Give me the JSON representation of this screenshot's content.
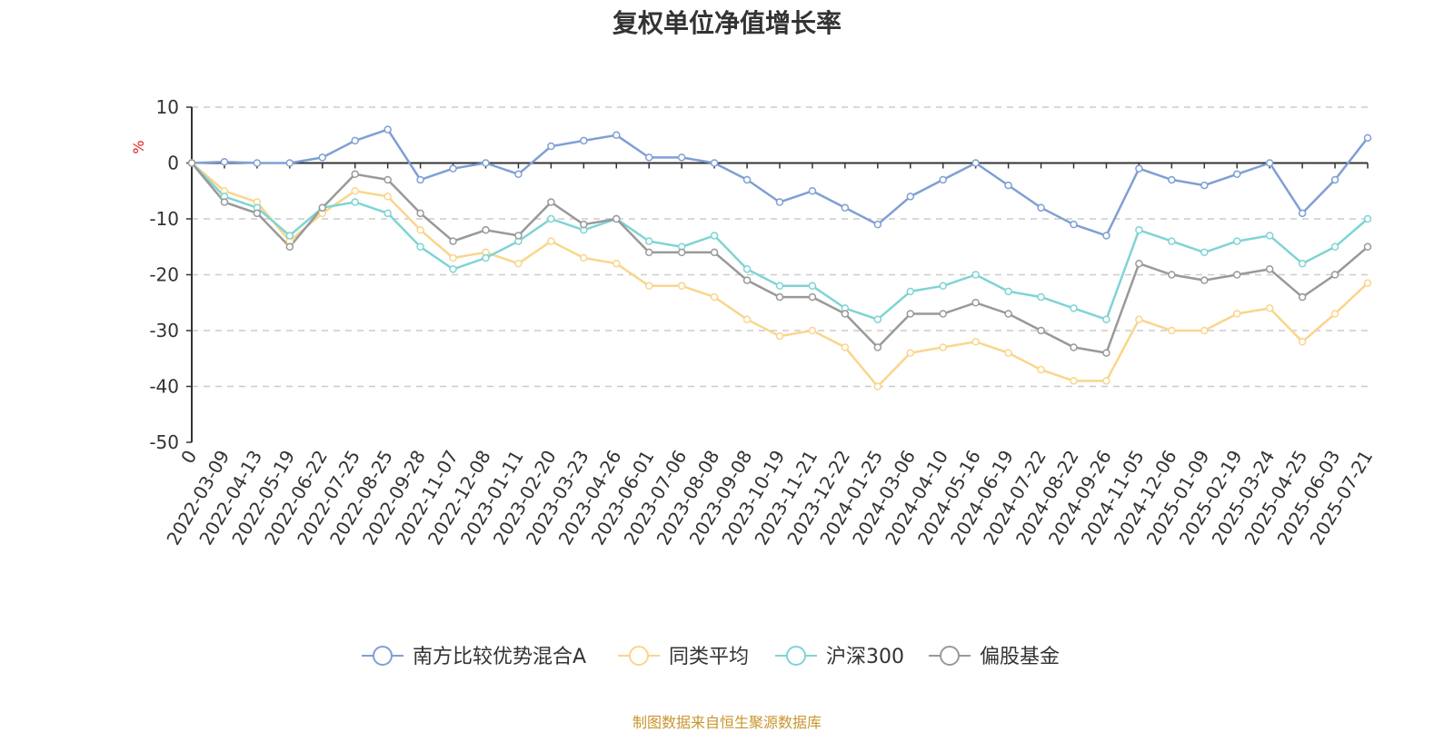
{
  "chart_data": {
    "type": "line",
    "title": "复权单位净值增长率",
    "ylabel": "%",
    "source": "制图数据来自恒生聚源数据库",
    "ylim": [
      -50,
      10
    ],
    "yticks": [
      10,
      0,
      -10,
      -20,
      -30,
      -40,
      -50
    ],
    "categories": [
      "0",
      "2022-03-09",
      "2022-04-13",
      "2022-05-19",
      "2022-06-22",
      "2022-07-25",
      "2022-08-25",
      "2022-09-28",
      "2022-11-07",
      "2022-12-08",
      "2023-01-11",
      "2023-02-20",
      "2023-03-23",
      "2023-04-26",
      "2023-06-01",
      "2023-07-06",
      "2023-08-08",
      "2023-09-08",
      "2023-10-19",
      "2023-11-21",
      "2023-12-22",
      "2024-01-25",
      "2024-03-06",
      "2024-04-10",
      "2024-05-16",
      "2024-06-19",
      "2024-07-22",
      "2024-08-22",
      "2024-09-26",
      "2024-11-05",
      "2024-12-06",
      "2025-01-09",
      "2025-02-19",
      "2025-03-24",
      "2025-04-25",
      "2025-06-03",
      "2025-07-21"
    ],
    "grid": true,
    "legend_position": "bottom",
    "series": [
      {
        "name": "南方比较优势混合A",
        "color": "#7f9fd4",
        "values": [
          0,
          0.2,
          0,
          0,
          1,
          4,
          6,
          -3,
          -1,
          0,
          -2,
          3,
          4,
          5,
          1,
          1,
          0,
          -3,
          -7,
          -5,
          -8,
          -11,
          -6,
          -3,
          0,
          -4,
          -8,
          -11,
          -13,
          -1,
          -3,
          -4,
          -2,
          0,
          -9,
          -3,
          4.5
        ]
      },
      {
        "name": "同类平均",
        "color": "#fad58b",
        "values": [
          0,
          -5,
          -7,
          -14,
          -9,
          -5,
          -6,
          -12,
          -17,
          -16,
          -18,
          -14,
          -17,
          -18,
          -22,
          -22,
          -24,
          -28,
          -31,
          -30,
          -33,
          -40,
          -34,
          -33,
          -32,
          -34,
          -37,
          -39,
          -39,
          -28,
          -30,
          -30,
          -27,
          -26,
          -32,
          -27,
          -21.5
        ]
      },
      {
        "name": "沪深300",
        "color": "#7fd4d4",
        "values": [
          0,
          -6,
          -8,
          -13,
          -8,
          -7,
          -9,
          -15,
          -19,
          -17,
          -14,
          -10,
          -12,
          -10,
          -14,
          -15,
          -13,
          -19,
          -22,
          -22,
          -26,
          -28,
          -23,
          -22,
          -20,
          -23,
          -24,
          -26,
          -28,
          -12,
          -14,
          -16,
          -14,
          -13,
          -18,
          -15,
          -10
        ]
      },
      {
        "name": "偏股基金",
        "color": "#999999",
        "values": [
          0,
          -7,
          -9,
          -15,
          -8,
          -2,
          -3,
          -9,
          -14,
          -12,
          -13,
          -7,
          -11,
          -10,
          -16,
          -16,
          -16,
          -21,
          -24,
          -24,
          -27,
          -33,
          -27,
          -27,
          -25,
          -27,
          -30,
          -33,
          -34,
          -18,
          -20,
          -21,
          -20,
          -19,
          -24,
          -20,
          -15
        ]
      }
    ]
  }
}
